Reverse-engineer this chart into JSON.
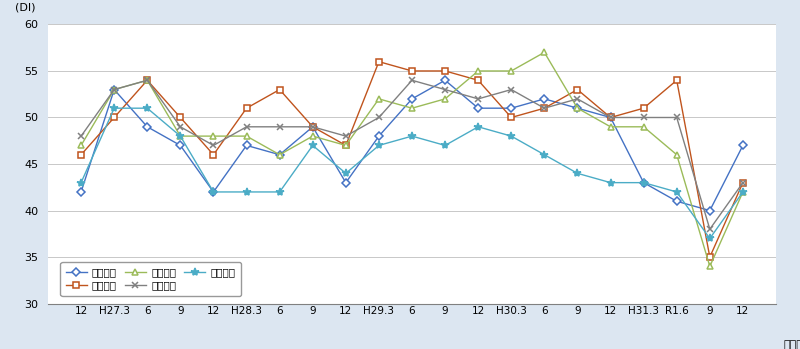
{
  "title_y_label": "(DI)",
  "ylim": [
    30,
    60
  ],
  "yticks": [
    30,
    35,
    40,
    45,
    50,
    55,
    60
  ],
  "x_labels_display": [
    "12",
    "H27.3",
    "6",
    "9",
    "12",
    "H28.3",
    "6",
    "9",
    "12",
    "H29.3",
    "6",
    "9",
    "12",
    "H30.3",
    "6",
    "9",
    "12",
    "H31.3",
    "R1.6",
    "9",
    "12"
  ],
  "series": [
    {
      "name": "県北地域",
      "color": "#4472C4",
      "marker": "D",
      "markersize": 4,
      "values": [
        42,
        53,
        49,
        47,
        42,
        47,
        46,
        49,
        43,
        48,
        52,
        54,
        51,
        51,
        52,
        51,
        50,
        43,
        41,
        40,
        47
      ]
    },
    {
      "name": "県央地域",
      "color": "#C0541D",
      "marker": "s",
      "markersize": 4,
      "values": [
        46,
        50,
        54,
        50,
        46,
        51,
        53,
        49,
        47,
        56,
        55,
        55,
        54,
        50,
        51,
        53,
        50,
        51,
        54,
        35,
        43
      ]
    },
    {
      "name": "鹿行地域",
      "color": "#9BBB59",
      "marker": "^",
      "markersize": 5,
      "values": [
        47,
        53,
        54,
        48,
        48,
        48,
        46,
        48,
        47,
        52,
        51,
        52,
        55,
        55,
        57,
        51,
        49,
        49,
        46,
        34,
        42
      ]
    },
    {
      "name": "県南地域",
      "color": "#808080",
      "marker": "x",
      "markersize": 5,
      "values": [
        48,
        53,
        54,
        49,
        47,
        49,
        49,
        49,
        48,
        50,
        54,
        53,
        52,
        53,
        51,
        52,
        50,
        50,
        50,
        38,
        43
      ]
    },
    {
      "name": "県西地域",
      "color": "#4BACC6",
      "marker": "*",
      "markersize": 6,
      "values": [
        43,
        51,
        51,
        48,
        42,
        42,
        42,
        47,
        44,
        47,
        48,
        47,
        49,
        48,
        46,
        44,
        43,
        43,
        42,
        37,
        42
      ]
    }
  ],
  "background_color": "#ffffff",
  "grid_color": "#c8c8c8",
  "figure_bg": "#dce6f1"
}
